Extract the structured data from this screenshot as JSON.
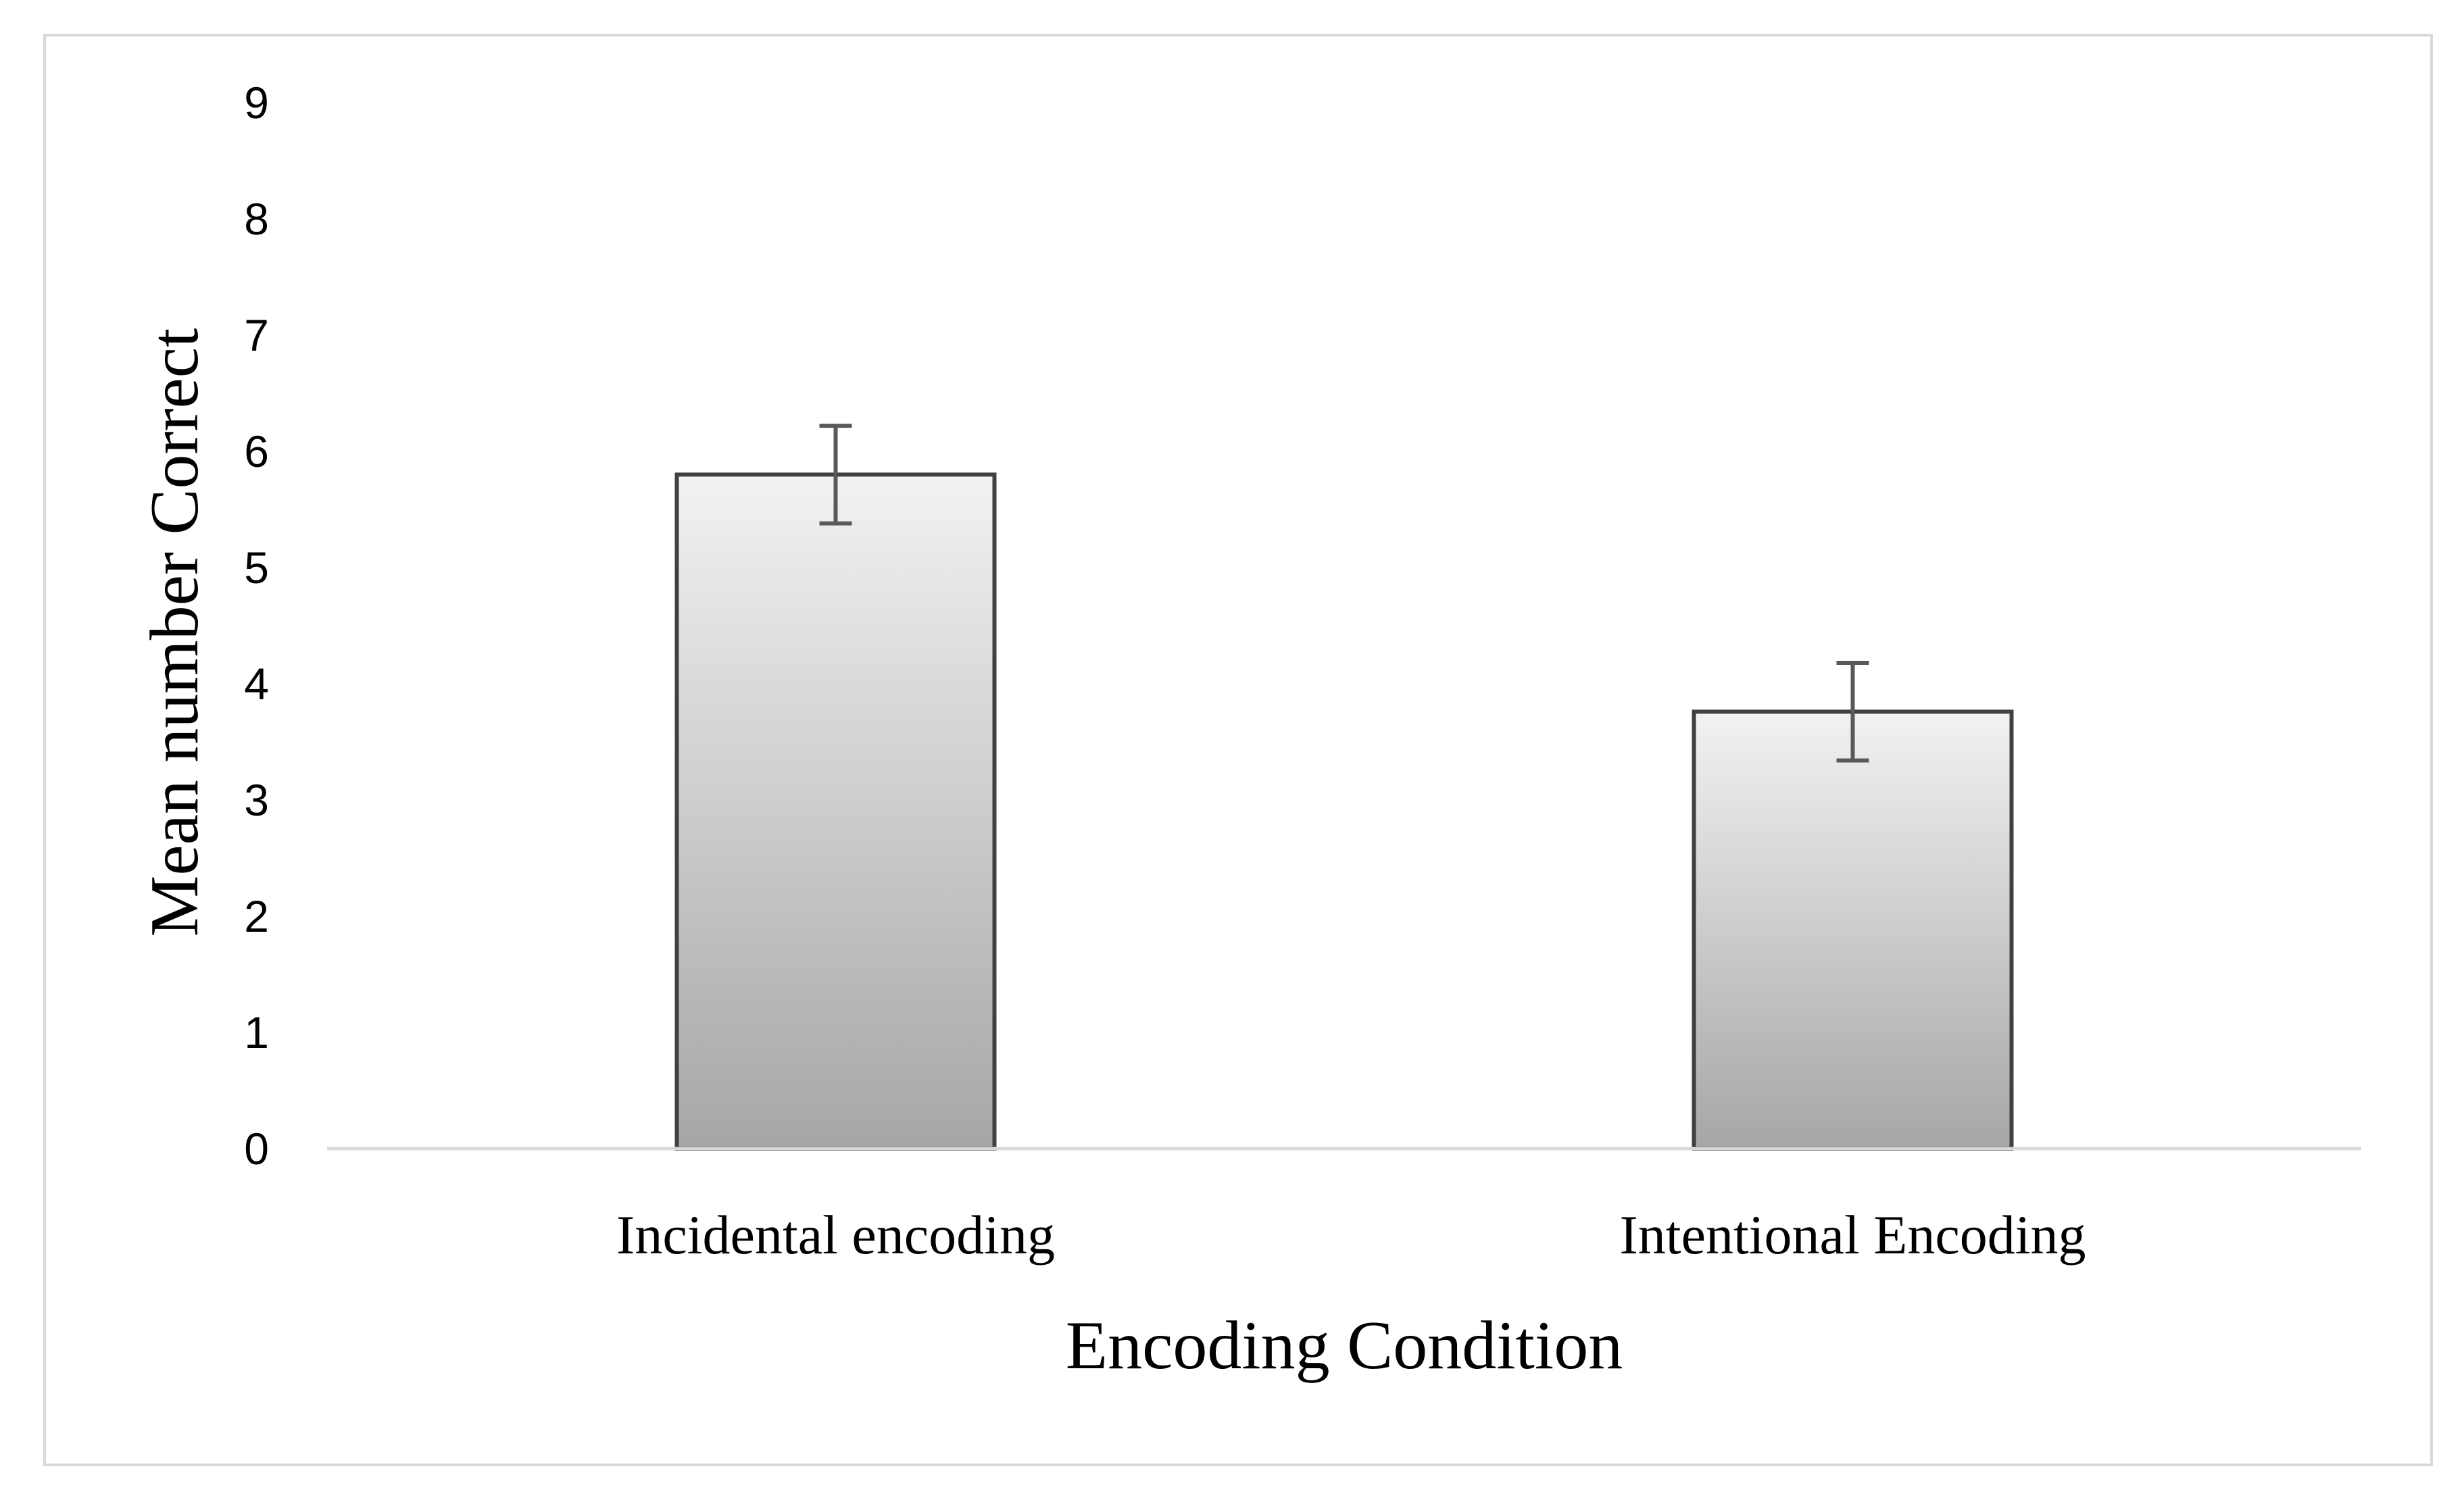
{
  "chart_data": {
    "type": "bar",
    "title": "",
    "xlabel": "Encoding Condition",
    "ylabel": "Mean number Correct",
    "categories": [
      "Incidental encoding",
      "Intentional Encoding"
    ],
    "values": [
      5.8,
      3.76
    ],
    "error": [
      0.42,
      0.42
    ],
    "ylim": [
      0,
      9
    ],
    "yticks": [
      "0",
      "1",
      "2",
      "3",
      "4",
      "5",
      "6",
      "7",
      "8",
      "9"
    ],
    "grid": false,
    "legend": "none",
    "colors": {
      "bar_top": "#f2f2f2",
      "bar_bottom": "#a6a6a6",
      "bar_border": "#404040",
      "error_bar": "#595959",
      "axis_line": "#d9d9d9",
      "frame": "#d9d9d9"
    }
  }
}
